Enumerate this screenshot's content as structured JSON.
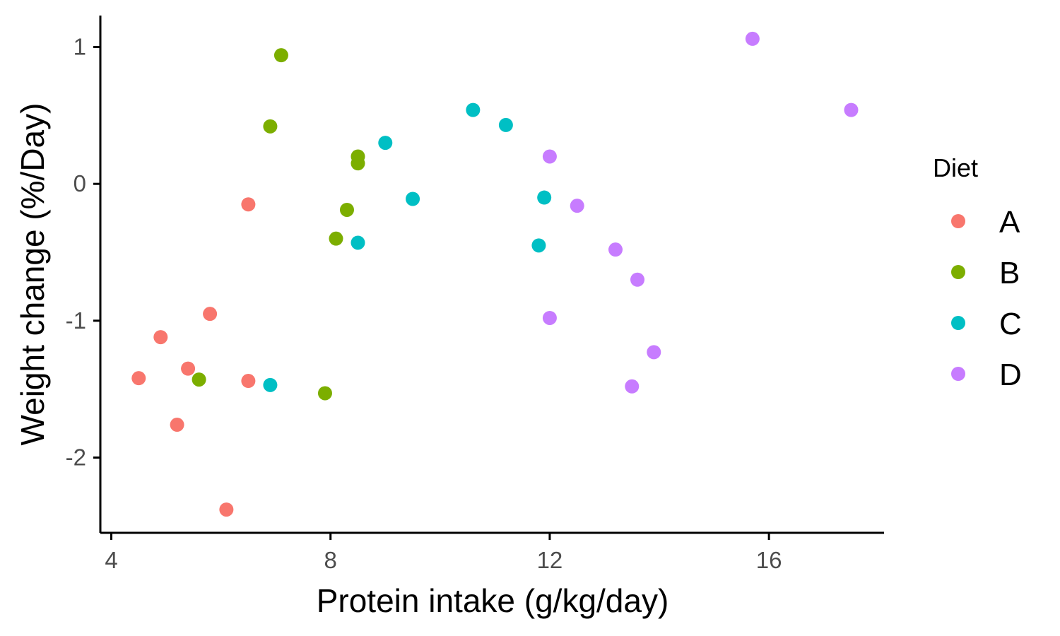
{
  "chart_data": {
    "type": "scatter",
    "title": "",
    "xlabel": "Protein intake (g/kg/day)",
    "ylabel": "Weight change (%/Day)",
    "xlim": [
      3.8,
      18.1
    ],
    "ylim": [
      -2.55,
      1.23
    ],
    "xticks": [
      4,
      8,
      12,
      16
    ],
    "yticks": [
      -2,
      -1,
      0,
      1
    ],
    "grid": false,
    "legend": {
      "title": "Diet",
      "position": "right"
    },
    "series": [
      {
        "name": "A",
        "color": "#F8766D",
        "points": [
          [
            4.5,
            -1.42
          ],
          [
            4.9,
            -1.12
          ],
          [
            5.2,
            -1.76
          ],
          [
            5.4,
            -1.35
          ],
          [
            5.8,
            -0.95
          ],
          [
            6.1,
            -2.38
          ],
          [
            6.5,
            -1.44
          ],
          [
            6.5,
            -0.15
          ]
        ]
      },
      {
        "name": "B",
        "color": "#7CAE00",
        "points": [
          [
            5.6,
            -1.43
          ],
          [
            6.9,
            0.42
          ],
          [
            7.1,
            0.94
          ],
          [
            7.9,
            -1.53
          ],
          [
            8.1,
            -0.4
          ],
          [
            8.3,
            -0.19
          ],
          [
            8.5,
            0.2
          ],
          [
            8.5,
            0.15
          ]
        ]
      },
      {
        "name": "C",
        "color": "#00BFC4",
        "points": [
          [
            6.9,
            -1.47
          ],
          [
            8.5,
            -0.43
          ],
          [
            9.0,
            0.3
          ],
          [
            9.5,
            -0.11
          ],
          [
            10.6,
            0.54
          ],
          [
            11.2,
            0.43
          ],
          [
            11.8,
            -0.45
          ],
          [
            11.9,
            -0.1
          ]
        ]
      },
      {
        "name": "D",
        "color": "#C77CFF",
        "points": [
          [
            12.0,
            0.2
          ],
          [
            12.0,
            -0.98
          ],
          [
            12.5,
            -0.16
          ],
          [
            13.2,
            -0.48
          ],
          [
            13.5,
            -1.48
          ],
          [
            13.6,
            -0.7
          ],
          [
            13.9,
            -1.23
          ],
          [
            15.7,
            1.06
          ],
          [
            17.5,
            0.54
          ]
        ]
      }
    ]
  }
}
